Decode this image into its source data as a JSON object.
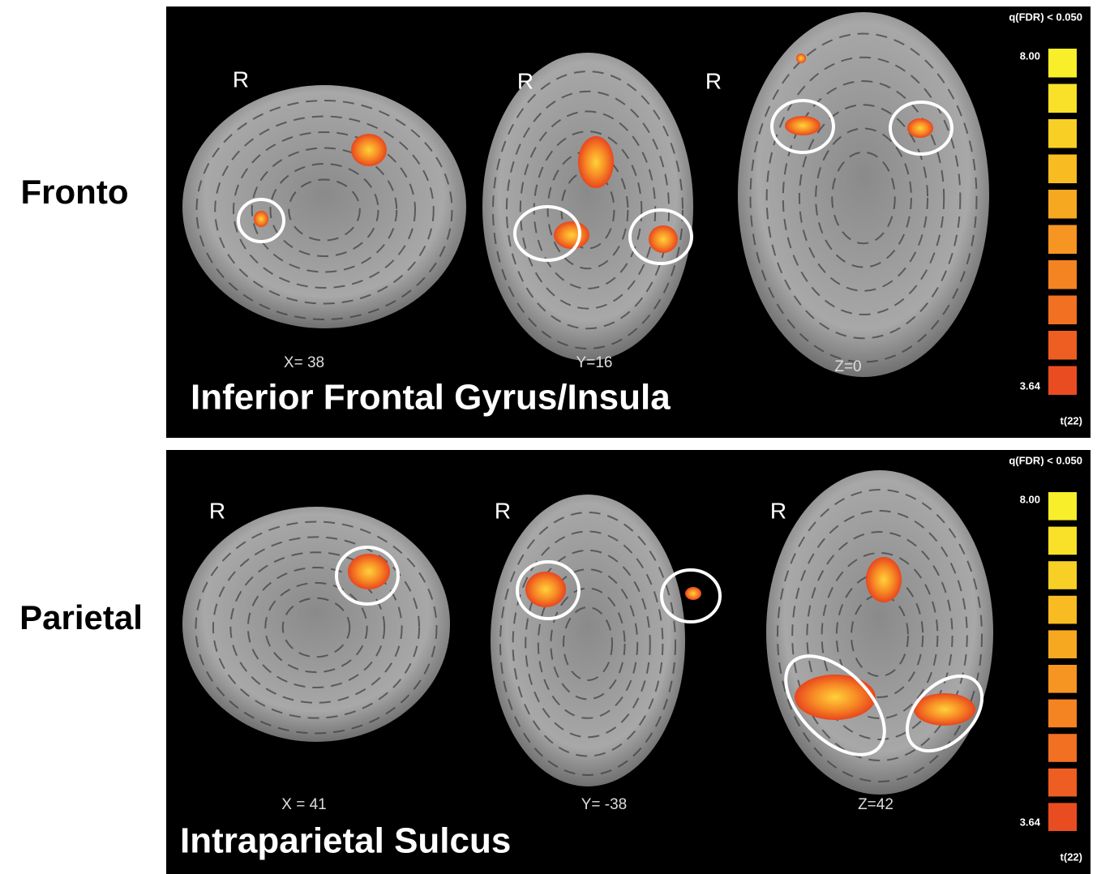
{
  "rows": [
    {
      "label": "Fronto",
      "region": "Inferior Frontal Gyrus/Insula",
      "views": [
        {
          "orientation": "R",
          "coordinate": "X= 38"
        },
        {
          "orientation": "R",
          "coordinate": "Y=16"
        },
        {
          "orientation": "R",
          "coordinate": "Z=0"
        }
      ],
      "colorbar": {
        "threshold": "q(FDR) < 0.050",
        "max": "8.00",
        "min": "3.64",
        "stat": "t(22)"
      }
    },
    {
      "label": "Parietal",
      "region": "Intraparietal Sulcus",
      "views": [
        {
          "orientation": "R",
          "coordinate": "X = 41"
        },
        {
          "orientation": "R",
          "coordinate": "Y= -38"
        },
        {
          "orientation": "R",
          "coordinate": "Z=42"
        }
      ],
      "colorbar": {
        "threshold": "q(FDR) < 0.050",
        "max": "8.00",
        "min": "3.64",
        "stat": "t(22)"
      }
    }
  ]
}
